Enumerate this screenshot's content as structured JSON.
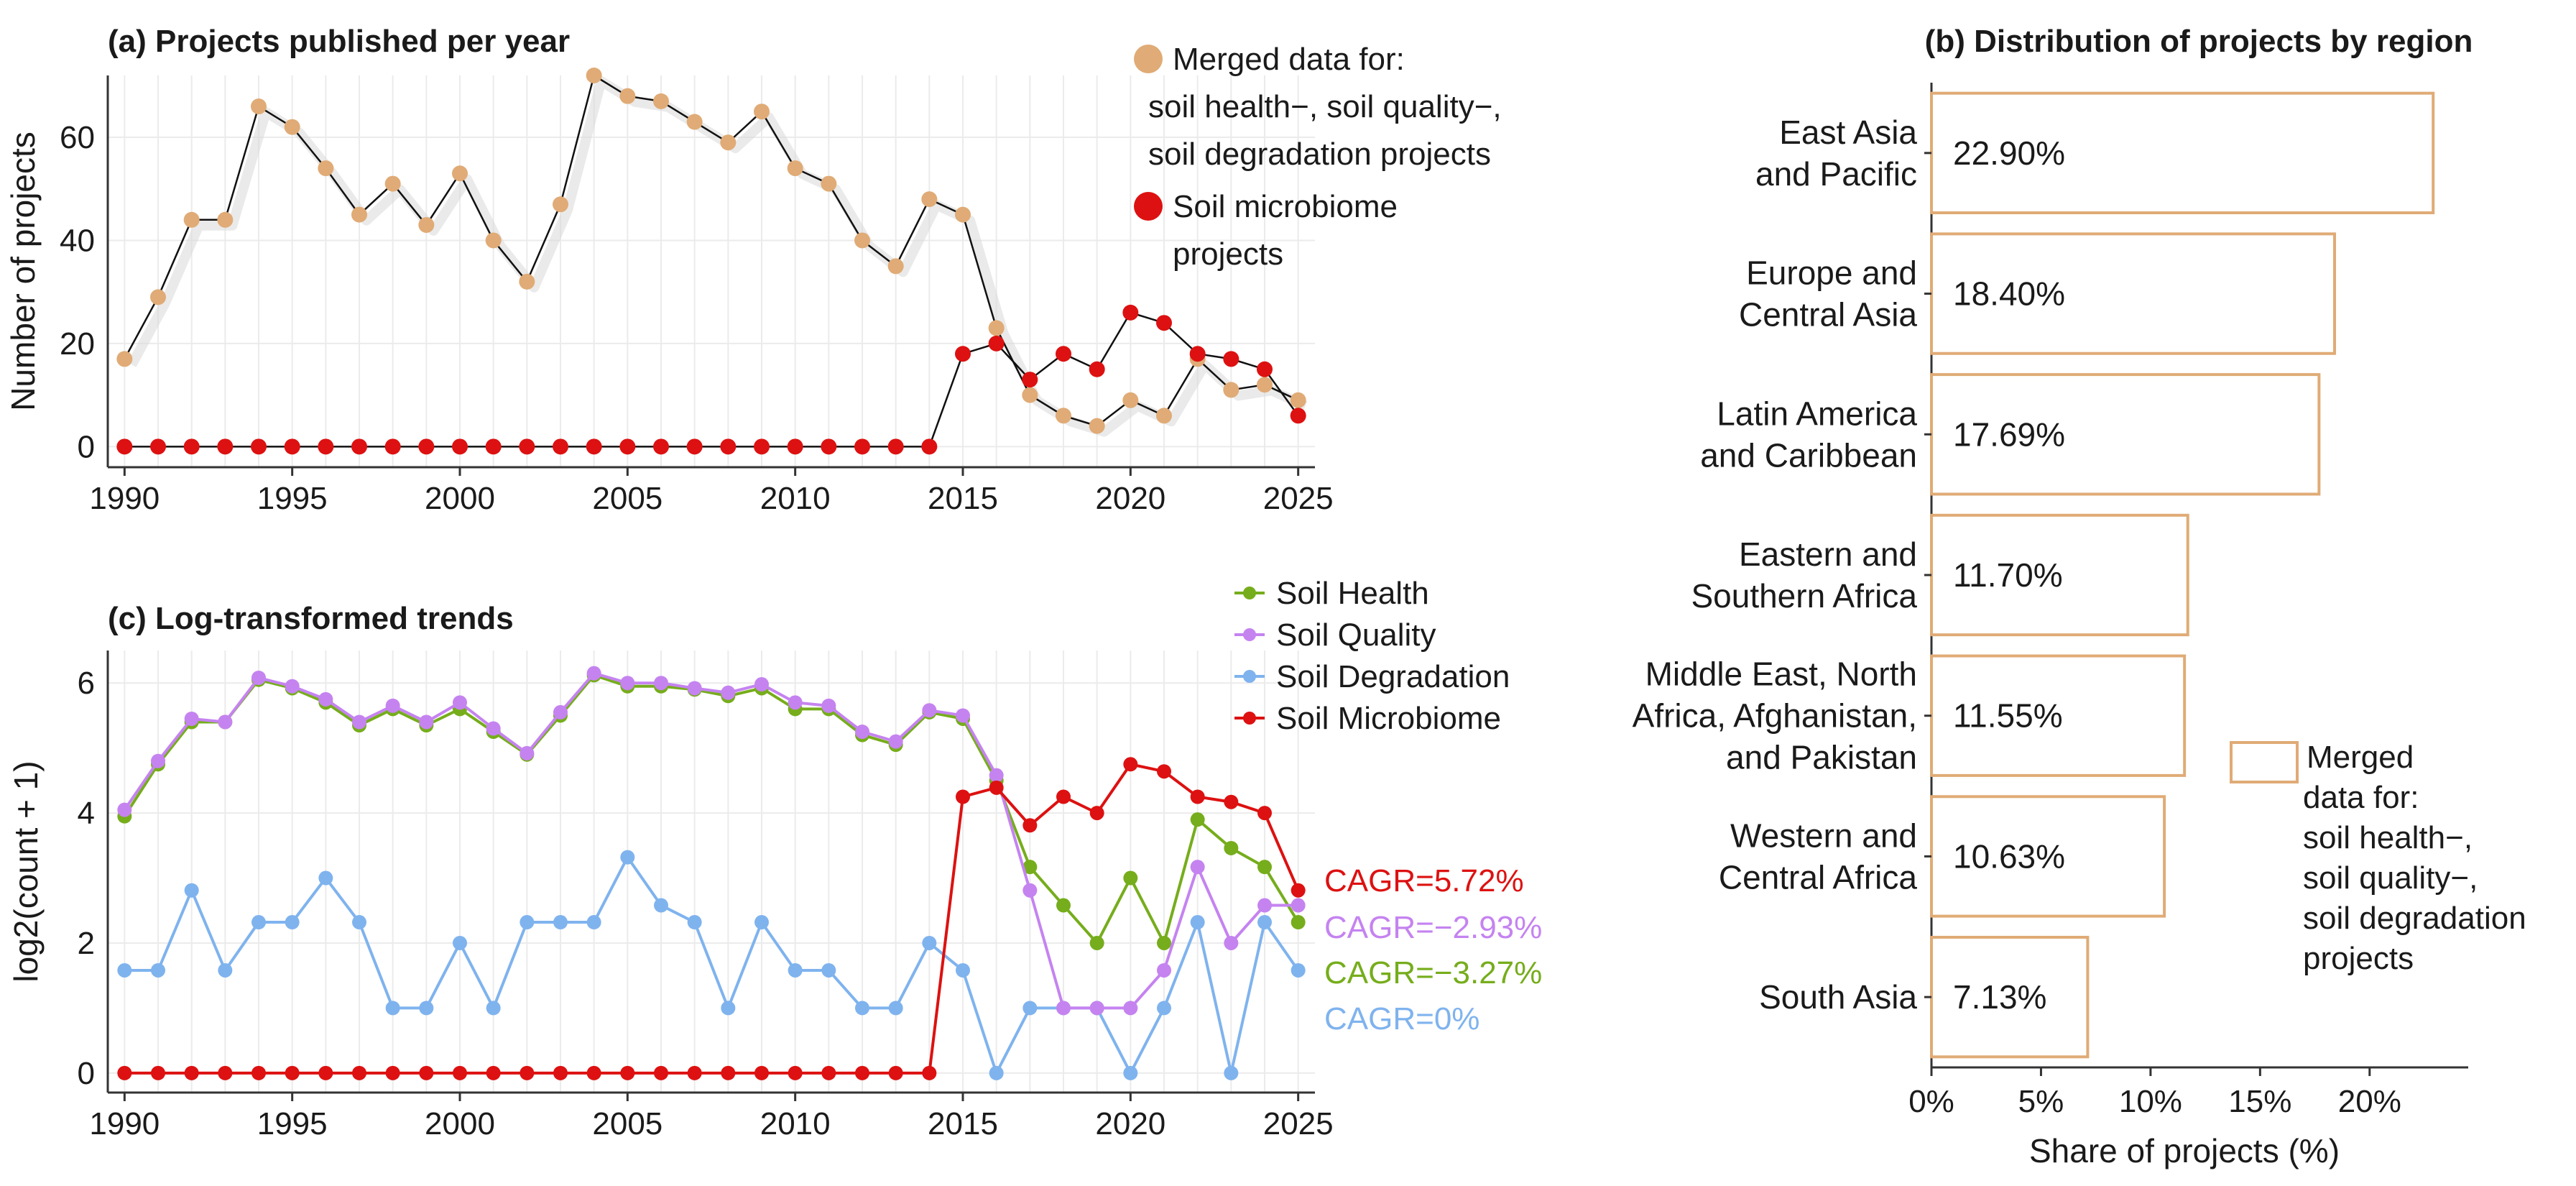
{
  "panel_a": {
    "chart_data": {
      "type": "line",
      "title": "(a) Projects published per year",
      "xlabel": "",
      "ylabel": "Number of projects",
      "xlim": [
        1989.5,
        2025.5
      ],
      "ylim": [
        -4,
        72
      ],
      "x_ticks": [
        1990,
        1995,
        2000,
        2005,
        2010,
        2015,
        2020,
        2025
      ],
      "y_ticks": [
        0,
        20,
        40,
        60
      ],
      "x": [
        1990,
        1991,
        1992,
        1993,
        1994,
        1995,
        1996,
        1997,
        1998,
        1999,
        2000,
        2001,
        2002,
        2003,
        2004,
        2005,
        2006,
        2007,
        2008,
        2009,
        2010,
        2011,
        2012,
        2013,
        2014,
        2015,
        2016,
        2017,
        2018,
        2019,
        2020,
        2021,
        2022,
        2023,
        2024,
        2025
      ],
      "series": [
        {
          "name": "Merged data for: soil health−, soil quality−, soil degradation projects",
          "color": "#e0ab76",
          "values": [
            17,
            29,
            44,
            44,
            66,
            62,
            54,
            45,
            51,
            43,
            53,
            40,
            32,
            47,
            72,
            68,
            67,
            63,
            59,
            65,
            54,
            51,
            40,
            35,
            48,
            45,
            23,
            10,
            6,
            4,
            9,
            6,
            17,
            11,
            12,
            9
          ]
        },
        {
          "name": "Soil microbiome projects",
          "color": "#dd1111",
          "values": [
            0,
            0,
            0,
            0,
            0,
            0,
            0,
            0,
            0,
            0,
            0,
            0,
            0,
            0,
            0,
            0,
            0,
            0,
            0,
            0,
            0,
            0,
            0,
            0,
            0,
            18,
            20,
            13,
            18,
            15,
            26,
            24,
            18,
            17,
            15,
            6
          ]
        }
      ],
      "legend": [
        {
          "lines": [
            "Merged data for:",
            "soil health−, soil quality−,",
            "soil degradation projects"
          ]
        },
        {
          "lines": [
            "Soil microbiome",
            "projects"
          ]
        }
      ]
    }
  },
  "panel_b": {
    "chart_data": {
      "type": "bar",
      "orientation": "horizontal",
      "title": "(b) Distribution of projects by region",
      "xlabel": "Share of projects (%)",
      "xlim": [
        0,
        24.5
      ],
      "x_ticks": [
        0,
        5,
        10,
        15,
        20
      ],
      "x_tick_labels": [
        "0%",
        "5%",
        "10%",
        "15%",
        "20%"
      ],
      "bar_color": "#e0ab76",
      "categories": [
        {
          "lines": [
            "East Asia",
            "and Pacific"
          ]
        },
        {
          "lines": [
            "Europe and",
            "Central Asia"
          ]
        },
        {
          "lines": [
            "Latin America",
            "and Caribbean"
          ]
        },
        {
          "lines": [
            "Eastern and",
            "Southern Africa"
          ]
        },
        {
          "lines": [
            "Middle East, North",
            "Africa, Afghanistan,",
            "and Pakistan"
          ]
        },
        {
          "lines": [
            "Western and",
            "Central Africa"
          ]
        },
        {
          "lines": [
            "South Asia"
          ]
        }
      ],
      "values": [
        22.9,
        18.4,
        17.69,
        11.7,
        11.55,
        10.63,
        7.13
      ],
      "value_labels": [
        "22.90%",
        "18.40%",
        "17.69%",
        "11.70%",
        "11.55%",
        "10.63%",
        "7.13%"
      ],
      "legend": {
        "lines": [
          "Merged",
          "data for:",
          "soil health−,",
          "soil quality−,",
          "soil degradation",
          "projects"
        ]
      }
    }
  },
  "panel_c": {
    "chart_data": {
      "type": "line",
      "title": "(c) Log-transformed trends",
      "xlabel": "",
      "ylabel": "log2(count + 1)",
      "xlim": [
        1989.5,
        2025.5
      ],
      "ylim": [
        -0.3,
        6.5
      ],
      "x_ticks": [
        1990,
        1995,
        2000,
        2005,
        2010,
        2015,
        2020,
        2025
      ],
      "y_ticks": [
        0,
        2,
        4,
        6
      ],
      "x": [
        1990,
        1991,
        1992,
        1993,
        1994,
        1995,
        1996,
        1997,
        1998,
        1999,
        2000,
        2001,
        2002,
        2003,
        2004,
        2005,
        2006,
        2007,
        2008,
        2009,
        2010,
        2011,
        2012,
        2013,
        2014,
        2015,
        2016,
        2017,
        2018,
        2019,
        2020,
        2021,
        2022,
        2023,
        2024,
        2025
      ],
      "series": [
        {
          "name": "Soil Degradation",
          "color": "#7fb3ee",
          "values": [
            1.58,
            1.58,
            2.81,
            1.58,
            2.32,
            2.32,
            3.0,
            2.32,
            1.0,
            1.0,
            2.0,
            1.0,
            2.32,
            2.32,
            2.32,
            3.32,
            2.58,
            2.32,
            1.0,
            2.32,
            1.58,
            1.58,
            1.0,
            1.0,
            2.0,
            1.58,
            0,
            1.0,
            1.0,
            1.0,
            0,
            1.0,
            2.32,
            0,
            2.32,
            1.58
          ]
        },
        {
          "name": "Soil Health",
          "color": "#76ad1c",
          "values": [
            3.95,
            4.75,
            5.4,
            5.4,
            6.05,
            5.92,
            5.7,
            5.35,
            5.6,
            5.35,
            5.6,
            5.25,
            4.9,
            5.5,
            6.12,
            5.95,
            5.95,
            5.9,
            5.8,
            5.92,
            5.6,
            5.6,
            5.2,
            5.05,
            5.55,
            5.45,
            4.5,
            3.17,
            2.58,
            2.0,
            3.0,
            2.0,
            3.9,
            3.46,
            3.17,
            2.32
          ]
        },
        {
          "name": "Soil Quality",
          "color": "#c583f0",
          "values": [
            4.05,
            4.8,
            5.45,
            5.4,
            6.08,
            5.95,
            5.75,
            5.4,
            5.65,
            5.4,
            5.7,
            5.3,
            4.92,
            5.55,
            6.15,
            6.0,
            6.0,
            5.92,
            5.85,
            5.98,
            5.7,
            5.65,
            5.25,
            5.1,
            5.58,
            5.5,
            4.58,
            2.81,
            1.0,
            1.0,
            1.0,
            1.58,
            3.17,
            2.0,
            2.58,
            2.58
          ]
        },
        {
          "name": "Soil Microbiome",
          "color": "#dd1111",
          "values": [
            0,
            0,
            0,
            0,
            0,
            0,
            0,
            0,
            0,
            0,
            0,
            0,
            0,
            0,
            0,
            0,
            0,
            0,
            0,
            0,
            0,
            0,
            0,
            0,
            0,
            4.25,
            4.39,
            3.81,
            4.25,
            4.0,
            4.75,
            4.64,
            4.25,
            4.17,
            4.0,
            2.81
          ]
        }
      ],
      "legend_order": [
        "Soil Health",
        "Soil Quality",
        "Soil Degradation",
        "Soil Microbiome"
      ],
      "annotations": [
        {
          "text": "CAGR=5.72%",
          "color": "#dd1111"
        },
        {
          "text": "CAGR=−2.93%",
          "color": "#c583f0"
        },
        {
          "text": "CAGR=−3.27%",
          "color": "#76ad1c"
        },
        {
          "text": "CAGR=0%",
          "color": "#7fb3ee"
        }
      ]
    }
  }
}
